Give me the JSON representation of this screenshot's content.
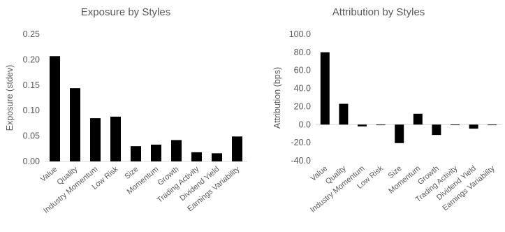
{
  "chart_data": [
    {
      "type": "bar",
      "title": "Exposure by Styles",
      "xlabel": "",
      "ylabel": "Exposure (stdev)",
      "categories": [
        "Value",
        "Quality",
        "Industry Momentum",
        "Low Risk",
        "Size",
        "Momentum",
        "Growth",
        "Trading Activity",
        "Dividend Yield",
        "Earnings Variability"
      ],
      "values": [
        0.207,
        0.144,
        0.085,
        0.088,
        0.03,
        0.033,
        0.042,
        0.018,
        0.016,
        0.049
      ],
      "ylim": [
        0,
        0.25
      ],
      "yticks": [
        "0.25",
        "0.20",
        "0.15",
        "0.10",
        "0.05",
        "0.00"
      ],
      "ytick_values": [
        0.25,
        0.2,
        0.15,
        0.1,
        0.05,
        0.0
      ],
      "grid": false,
      "legend": "none",
      "bar_color": "#000000"
    },
    {
      "type": "bar",
      "title": "Attribution by Styles",
      "xlabel": "",
      "ylabel": "Attribution (bps)",
      "categories": [
        "Value",
        "Quality",
        "Industry Momentum",
        "Low Risk",
        "Size",
        "Momentum",
        "Growth",
        "Trading Activity",
        "Dividend Yield",
        "Earnings Variability"
      ],
      "values": [
        80.0,
        23.0,
        -2.0,
        -0.5,
        -20.5,
        12.0,
        -11.5,
        -0.3,
        -4.5,
        0.0
      ],
      "ylim": [
        -40,
        100
      ],
      "yticks": [
        "100.0",
        "80.0",
        "60.0",
        "40.0",
        "20.0",
        "0.0",
        "-20.0",
        "-40.0"
      ],
      "ytick_values": [
        100,
        80,
        60,
        40,
        20,
        0,
        -20,
        -40
      ],
      "grid": false,
      "legend": "none",
      "bar_color": "#000000"
    }
  ]
}
